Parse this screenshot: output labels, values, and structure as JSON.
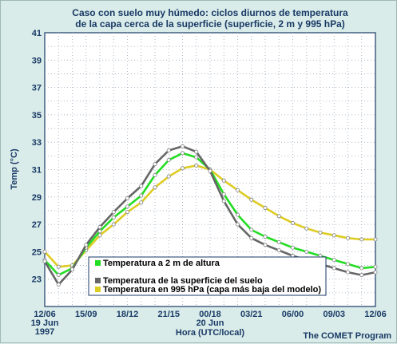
{
  "chart_data": {
    "type": "line",
    "title_lines": [
      "Caso con suelo muy húmedo: ciclos diurnos de temperatura",
      "de la capa cerca de la superficie (superficie, 2 m y 995 hPa)"
    ],
    "ylabel": "Temp (°C)",
    "xlabel": "Hora (UTC/local)",
    "ylim": [
      21,
      41
    ],
    "xlim": [
      0,
      24
    ],
    "y_ticks": [
      23,
      25,
      27,
      29,
      31,
      33,
      35,
      37,
      39,
      41
    ],
    "x_ticks": [
      {
        "x": 0,
        "lines": [
          "12/06",
          "19 Jun",
          "1997"
        ]
      },
      {
        "x": 3,
        "lines": [
          "15/09"
        ]
      },
      {
        "x": 6,
        "lines": [
          "18/12"
        ]
      },
      {
        "x": 9,
        "lines": [
          "21/15"
        ]
      },
      {
        "x": 12,
        "lines": [
          "00/18",
          "20 Jun"
        ]
      },
      {
        "x": 15,
        "lines": [
          "03/21"
        ]
      },
      {
        "x": 18,
        "lines": [
          "06/00"
        ]
      },
      {
        "x": 21,
        "lines": [
          "09/03"
        ]
      },
      {
        "x": 24,
        "lines": [
          "12/06"
        ]
      }
    ],
    "grid": true,
    "legend_position": "bottom-left",
    "x": [
      0,
      1,
      2,
      3,
      4,
      5,
      6,
      7,
      8,
      9,
      10,
      11,
      12,
      13,
      14,
      15,
      16,
      17,
      18,
      19,
      20,
      21,
      22,
      23,
      24
    ],
    "series": [
      {
        "name": "Temperatura a 2 m de altura",
        "color": "#22dd22",
        "values": [
          24.4,
          23.3,
          23.8,
          25.3,
          26.5,
          27.5,
          28.3,
          29.1,
          30.6,
          31.7,
          32.2,
          31.9,
          31.0,
          29.2,
          27.7,
          26.6,
          26.1,
          25.7,
          25.3,
          25.0,
          24.7,
          24.4,
          24.1,
          23.8,
          23.9
        ]
      },
      {
        "name": "Temperatura de la superficie del suelo",
        "color": "#666666",
        "values": [
          24.3,
          22.6,
          23.7,
          25.5,
          26.8,
          27.9,
          28.9,
          29.8,
          31.4,
          32.4,
          32.7,
          32.3,
          30.9,
          28.7,
          27.0,
          26.0,
          25.5,
          25.1,
          24.7,
          24.4,
          24.1,
          23.8,
          23.5,
          23.3,
          23.5
        ]
      },
      {
        "name": "Temperatura en 995 hPa (capa más baja del modelo)",
        "color": "#ddcc22",
        "values": [
          25.0,
          23.9,
          24.0,
          25.1,
          26.2,
          27.0,
          27.9,
          28.6,
          29.7,
          30.5,
          31.1,
          31.3,
          31.0,
          30.2,
          29.5,
          28.8,
          28.2,
          27.6,
          27.1,
          26.7,
          26.4,
          26.2,
          26.0,
          25.9,
          25.9
        ]
      }
    ]
  },
  "credit": "The COMET Program"
}
